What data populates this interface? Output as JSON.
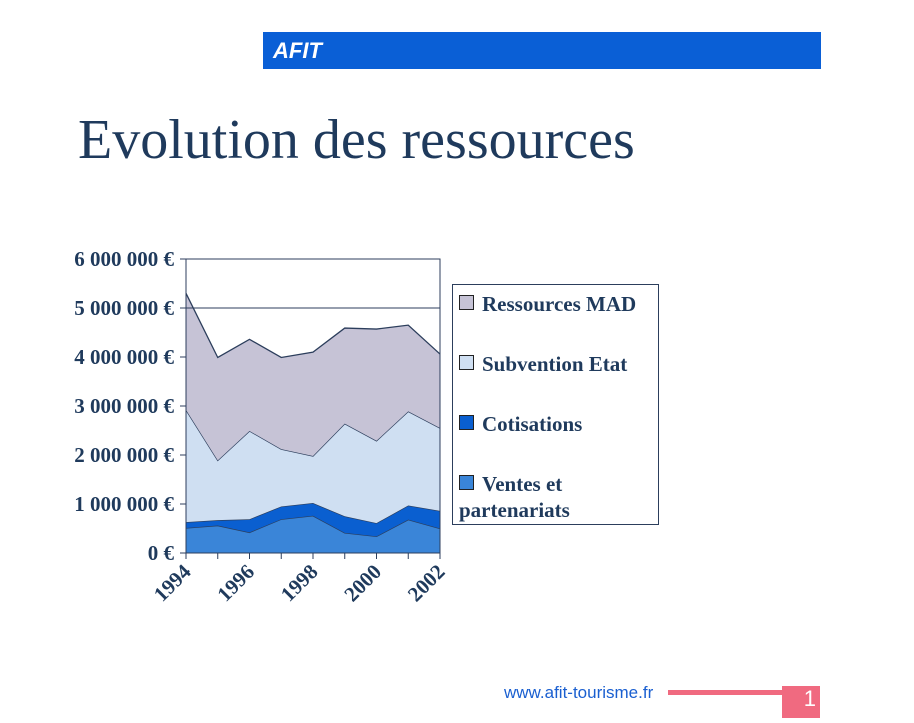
{
  "header": {
    "brand": "AFIT"
  },
  "title": "Evolution des ressources",
  "footer": {
    "url": "www.afit-tourisme.fr",
    "page_number": "1"
  },
  "chart_data": {
    "type": "area",
    "stacked": true,
    "title": "Evolution des ressources",
    "x": [
      1994,
      1995,
      1996,
      1997,
      1998,
      1999,
      2000,
      2001,
      2002
    ],
    "x_tick_labels": [
      "1994",
      "1996",
      "1998",
      "2000",
      "2002"
    ],
    "y_tick_labels": [
      "0 €",
      "1 000 000 €",
      "2 000 000 €",
      "3 000 000 €",
      "4 000 000 €",
      "5 000 000 €",
      "6 000 000 €"
    ],
    "ylim": [
      0,
      6000000
    ],
    "grid": "horizontal at 5 000 000",
    "legend_position": "right",
    "series": [
      {
        "name": "Ventes et partenariats",
        "color": "#3a85d8",
        "values": [
          510000,
          560000,
          420000,
          690000,
          760000,
          410000,
          340000,
          680000,
          500000
        ]
      },
      {
        "name": "Cotisations",
        "color": "#0a5fd0",
        "values": [
          120000,
          110000,
          270000,
          260000,
          260000,
          340000,
          270000,
          290000,
          360000
        ]
      },
      {
        "name": "Subvention Etat",
        "color": "#cfdff2",
        "values": [
          2290000,
          1220000,
          1800000,
          1170000,
          960000,
          1890000,
          1680000,
          1920000,
          1690000
        ]
      },
      {
        "name": "Ressources MAD",
        "color": "#c6c3d6",
        "values": [
          2380000,
          2100000,
          1870000,
          1870000,
          2120000,
          1950000,
          2280000,
          1760000,
          1510000
        ]
      }
    ]
  }
}
